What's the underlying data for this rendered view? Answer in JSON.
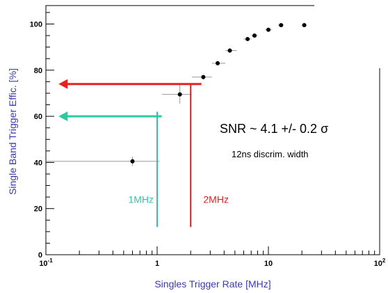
{
  "chart_data": {
    "type": "scatter",
    "title": "",
    "xlabel": "Singles Trigger Rate [MHz]",
    "ylabel": "Single Band Trigger Effic. [%]",
    "xscale": "log",
    "xlim": [
      0.1,
      100
    ],
    "ylim": [
      0,
      108
    ],
    "x_ticks": [
      0.1,
      1,
      10,
      100
    ],
    "x_tick_labels": [
      {
        "base": "10",
        "exp": "-1"
      },
      {
        "base": "1",
        "exp": ""
      },
      {
        "base": "10",
        "exp": ""
      },
      {
        "base": "10",
        "exp": "2"
      }
    ],
    "y_ticks": [
      0,
      20,
      40,
      60,
      80,
      100
    ],
    "y_tick_labels": [
      "0",
      "20",
      "40",
      "60",
      "80",
      "100"
    ],
    "grid": false,
    "series": [
      {
        "points": [
          {
            "x": 0.6,
            "y": 40.5,
            "xlo": 0.1,
            "xhi": 1.05,
            "ylo": 38.5,
            "yhi": 42.5
          },
          {
            "x": 1.6,
            "y": 69.5,
            "xlo": 1.1,
            "xhi": 2.05,
            "ylo": 65.5,
            "yhi": 73.5
          },
          {
            "x": 2.6,
            "y": 77.0,
            "xlo": 2.05,
            "xhi": 3.1,
            "ylo": 76.0,
            "yhi": 78.0
          },
          {
            "x": 3.5,
            "y": 83.0,
            "xlo": 3.1,
            "xhi": 4.1,
            "ylo": 82.0,
            "yhi": 84.0
          },
          {
            "x": 4.5,
            "y": 88.5,
            "xlo": 4.1,
            "xhi": 5.2,
            "ylo": 87.5,
            "yhi": 89.5
          },
          {
            "x": 6.5,
            "y": 93.5,
            "xlo": 6.0,
            "xhi": 7.0,
            "ylo": 93.0,
            "yhi": 94.0
          },
          {
            "x": 7.5,
            "y": 95.0,
            "xlo": 7.0,
            "xhi": 8.0,
            "ylo": 94.5,
            "yhi": 95.5
          },
          {
            "x": 10.0,
            "y": 97.5,
            "xlo": 9.3,
            "xhi": 10.7,
            "ylo": 97.0,
            "yhi": 98.0
          },
          {
            "x": 13.0,
            "y": 99.5,
            "xlo": 12.2,
            "xhi": 13.8,
            "ylo": 99.0,
            "yhi": 100.0
          },
          {
            "x": 21.0,
            "y": 99.5,
            "xlo": 20.0,
            "xhi": 22.0,
            "ylo": 99.0,
            "yhi": 100.0
          }
        ]
      }
    ],
    "annotations": [
      {
        "text": "1MHz",
        "color": "#2ec9a0",
        "line_x": 1.0,
        "line_ylo": 12,
        "line_yhi": 62,
        "arrow_y": 60,
        "arrow_x_from": 1.1,
        "arrow_x_to": 0.13,
        "label_x": 0.55,
        "label_y": 24
      },
      {
        "text": "2MHz",
        "color": "#e8201e",
        "line_x": 2.0,
        "line_ylo": 12,
        "line_yhi": 74,
        "arrow_y": 74,
        "arrow_x_from": 2.5,
        "arrow_x_to": 0.13,
        "label_x": 2.6,
        "label_y": 24
      }
    ],
    "text_annotations": {
      "snr": "SNR ~ 4.1 +/- 0.2 σ",
      "width": "12ns discrim. width"
    },
    "colors": {
      "axis_title": "#3a3aa8",
      "markers": "#000000",
      "error_bars": "#999999"
    }
  }
}
